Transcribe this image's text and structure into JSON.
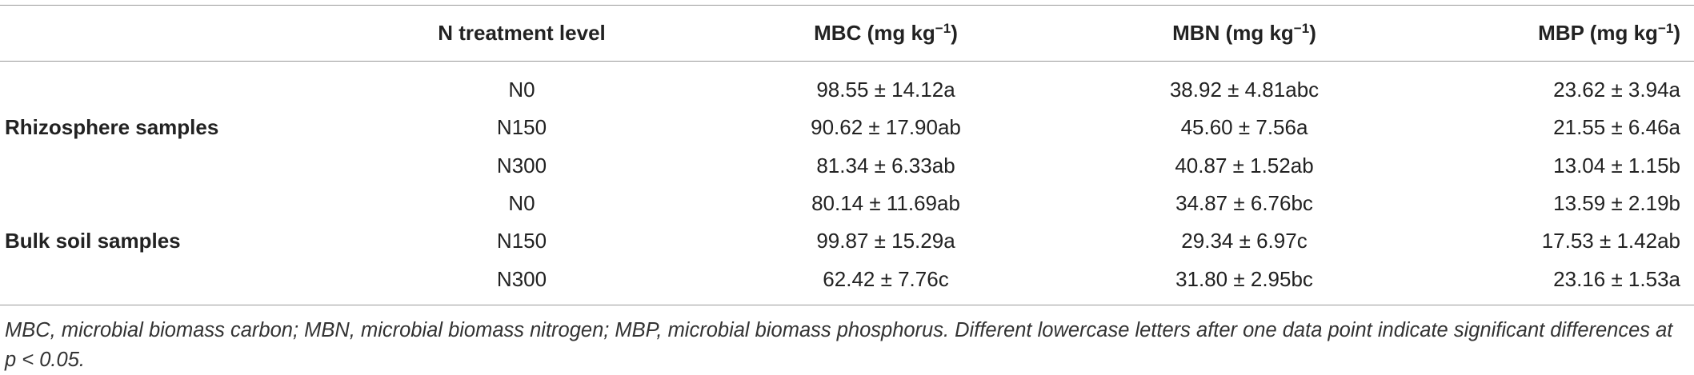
{
  "header": {
    "treatment": "N treatment level",
    "columns": [
      {
        "label": "MBC (mg kg",
        "exponent": "−1",
        "suffix": ")"
      },
      {
        "label": "MBN (mg kg",
        "exponent": "−1",
        "suffix": ")"
      },
      {
        "label": "MBP (mg kg",
        "exponent": "−1",
        "suffix": ")"
      }
    ]
  },
  "groups": [
    {
      "label": "Rhizosphere samples",
      "rows": [
        {
          "treatment": "N0",
          "cells": [
            "98.55 ± 14.12a",
            "38.92 ± 4.81abc",
            "23.62 ± 3.94a"
          ]
        },
        {
          "treatment": "N150",
          "cells": [
            "90.62 ± 17.90ab",
            "45.60 ± 7.56a",
            "21.55 ± 6.46a"
          ]
        },
        {
          "treatment": "N300",
          "cells": [
            "81.34 ± 6.33ab",
            "40.87 ± 1.52ab",
            "13.04 ± 1.15b"
          ]
        }
      ]
    },
    {
      "label": "Bulk soil samples",
      "rows": [
        {
          "treatment": "N0",
          "cells": [
            "80.14 ± 11.69ab",
            "34.87 ± 6.76bc",
            "13.59 ± 2.19b"
          ]
        },
        {
          "treatment": "N150",
          "cells": [
            "99.87 ± 15.29a",
            "29.34 ± 6.97c",
            "17.53 ± 1.42ab"
          ]
        },
        {
          "treatment": "N300",
          "cells": [
            "62.42 ± 7.76c",
            "31.80 ± 2.95bc",
            "23.16 ± 1.53a"
          ]
        }
      ]
    }
  ],
  "caption": "MBC, microbial biomass carbon; MBN, microbial biomass nitrogen; MBP, microbial biomass phosphorus. Different lowercase letters after one data point indicate significant differences at p < 0.05."
}
